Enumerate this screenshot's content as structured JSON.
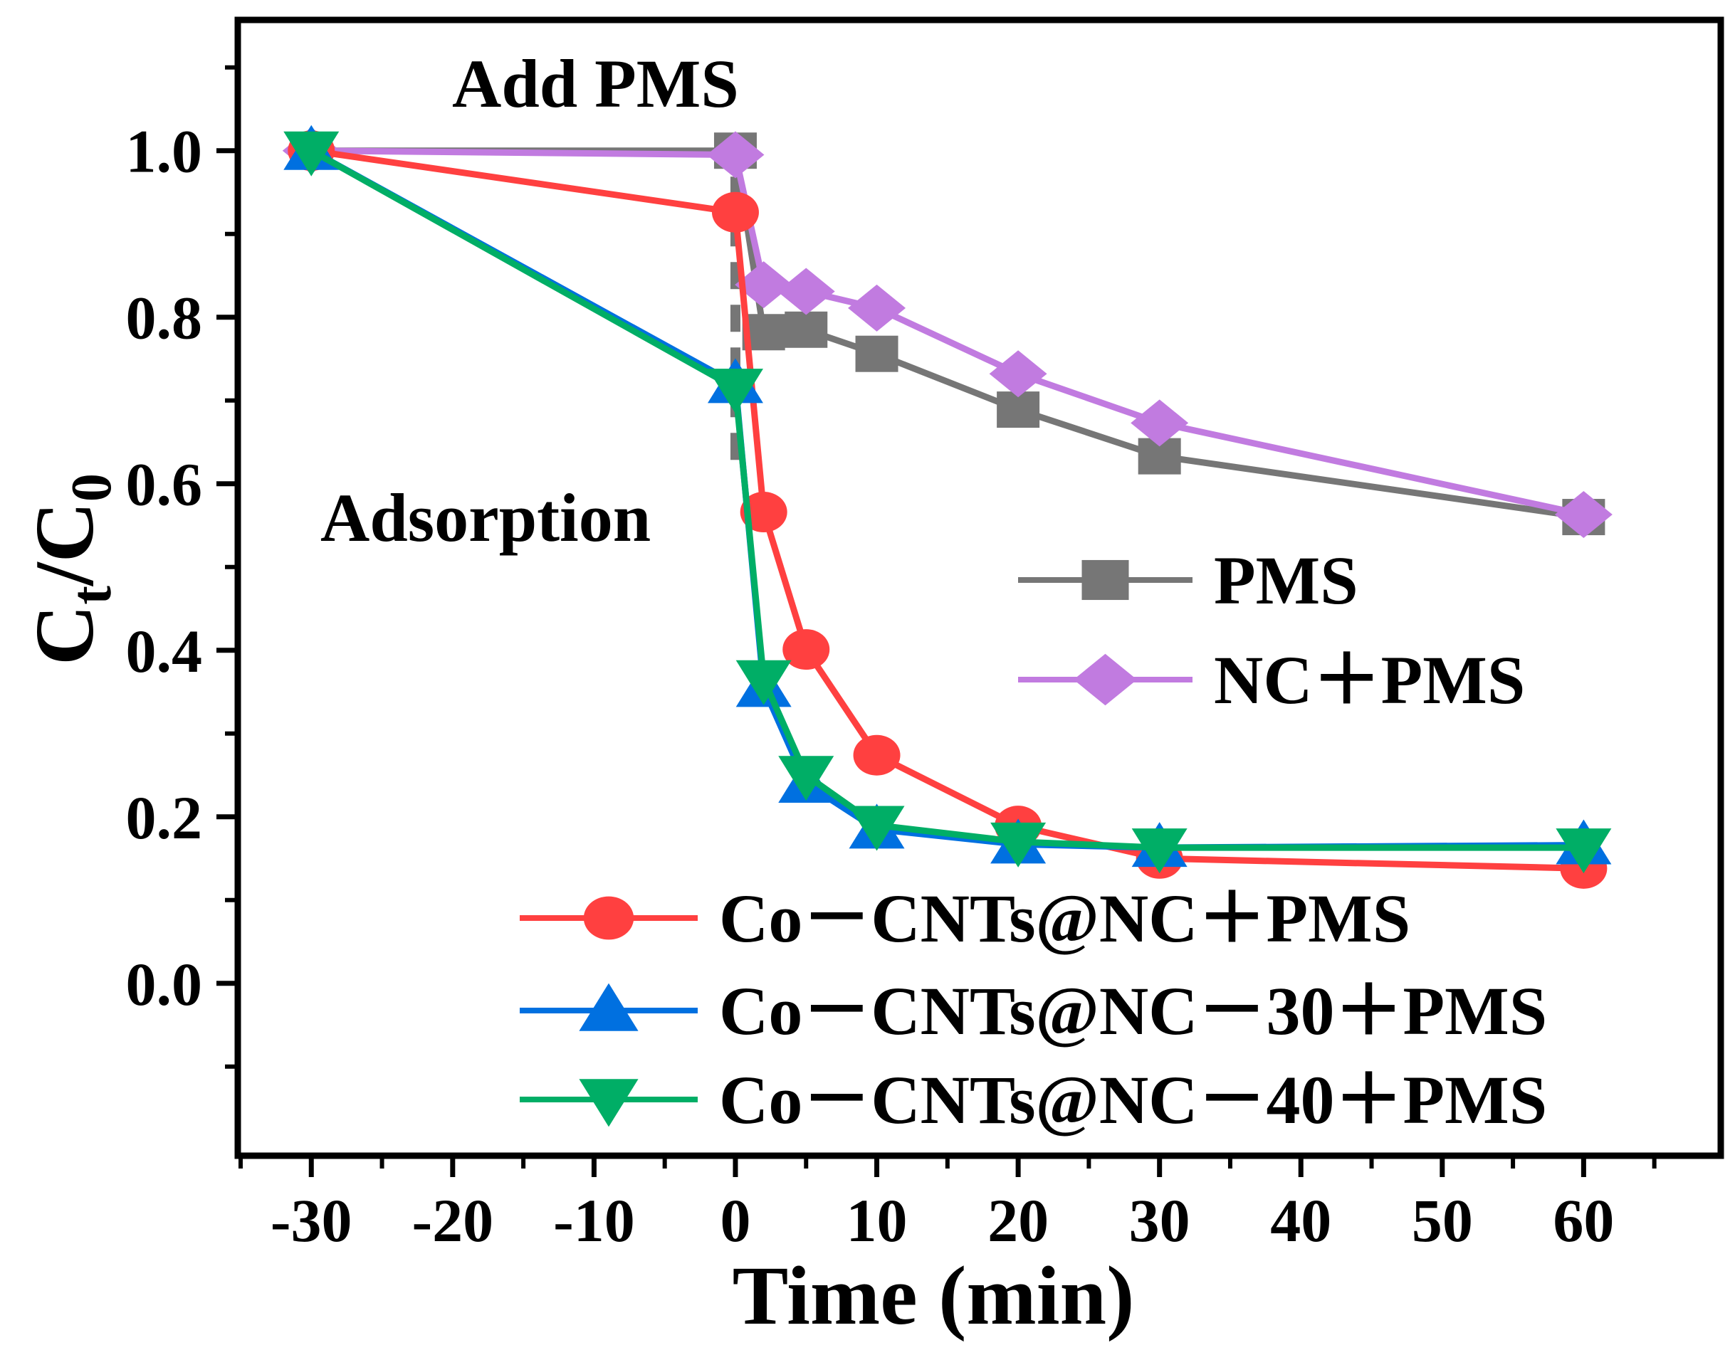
{
  "chart_data": {
    "type": "line",
    "title": "",
    "xlabel": "Time (min)",
    "ylabel_main": "C",
    "ylabel_sub1": "t",
    "ylabel_mid": "/C",
    "ylabel_sub2": "0",
    "xlim": [
      -35.2,
      69.7
    ],
    "ylim": [
      -0.207,
      1.157
    ],
    "xticks": [
      -30,
      -20,
      -10,
      0,
      10,
      20,
      30,
      40,
      50,
      60
    ],
    "xtick_labels": [
      "-30",
      "-20",
      "-10",
      "0",
      "10",
      "20",
      "30",
      "40",
      "50",
      "60"
    ],
    "yticks": [
      0.0,
      0.2,
      0.4,
      0.6,
      0.8,
      1.0
    ],
    "ytick_labels": [
      "0.0",
      "0.2",
      "0.4",
      "0.6",
      "0.8",
      "1.0"
    ],
    "grid": false,
    "x": [
      -30,
      0,
      2,
      5,
      10,
      20,
      30,
      60
    ],
    "annotations": [
      {
        "text": "Add PMS",
        "at_x": -5.4,
        "at_y": 1.07
      },
      {
        "text": "Adsorption",
        "at_x": -11,
        "at_y": 0.55
      }
    ],
    "marker_line_x": 0,
    "marker_line_y": [
      0.62,
      1.02
    ],
    "legend_groups": [
      "upper-right",
      "lower-right"
    ],
    "series": [
      {
        "name": "PMS",
        "color": "#767676",
        "marker": "square",
        "values": [
          1.0,
          1.0,
          0.782,
          0.785,
          0.756,
          0.689,
          0.633,
          0.56
        ]
      },
      {
        "name": "NC＋PMS",
        "color": "#C17BE0",
        "marker": "diamond",
        "values": [
          1.0,
          0.995,
          0.839,
          0.831,
          0.811,
          0.732,
          0.673,
          0.563
        ]
      },
      {
        "name": "Co－CNTs@NC＋PMS",
        "color": "#FF4040",
        "marker": "circle",
        "values": [
          1.0,
          0.926,
          0.566,
          0.401,
          0.274,
          0.189,
          0.15,
          0.138
        ]
      },
      {
        "name": "Co－CNTs@NC－30＋PMS",
        "color": "#0070E0",
        "marker": "triangle-up",
        "values": [
          1.0,
          0.72,
          0.355,
          0.24,
          0.185,
          0.167,
          0.163,
          0.166
        ]
      },
      {
        "name": "Co－CNTs@NC－40＋PMS",
        "color": "#00AE66",
        "marker": "triangle-down",
        "values": [
          1.0,
          0.715,
          0.365,
          0.25,
          0.19,
          0.17,
          0.163,
          0.163
        ]
      }
    ]
  }
}
